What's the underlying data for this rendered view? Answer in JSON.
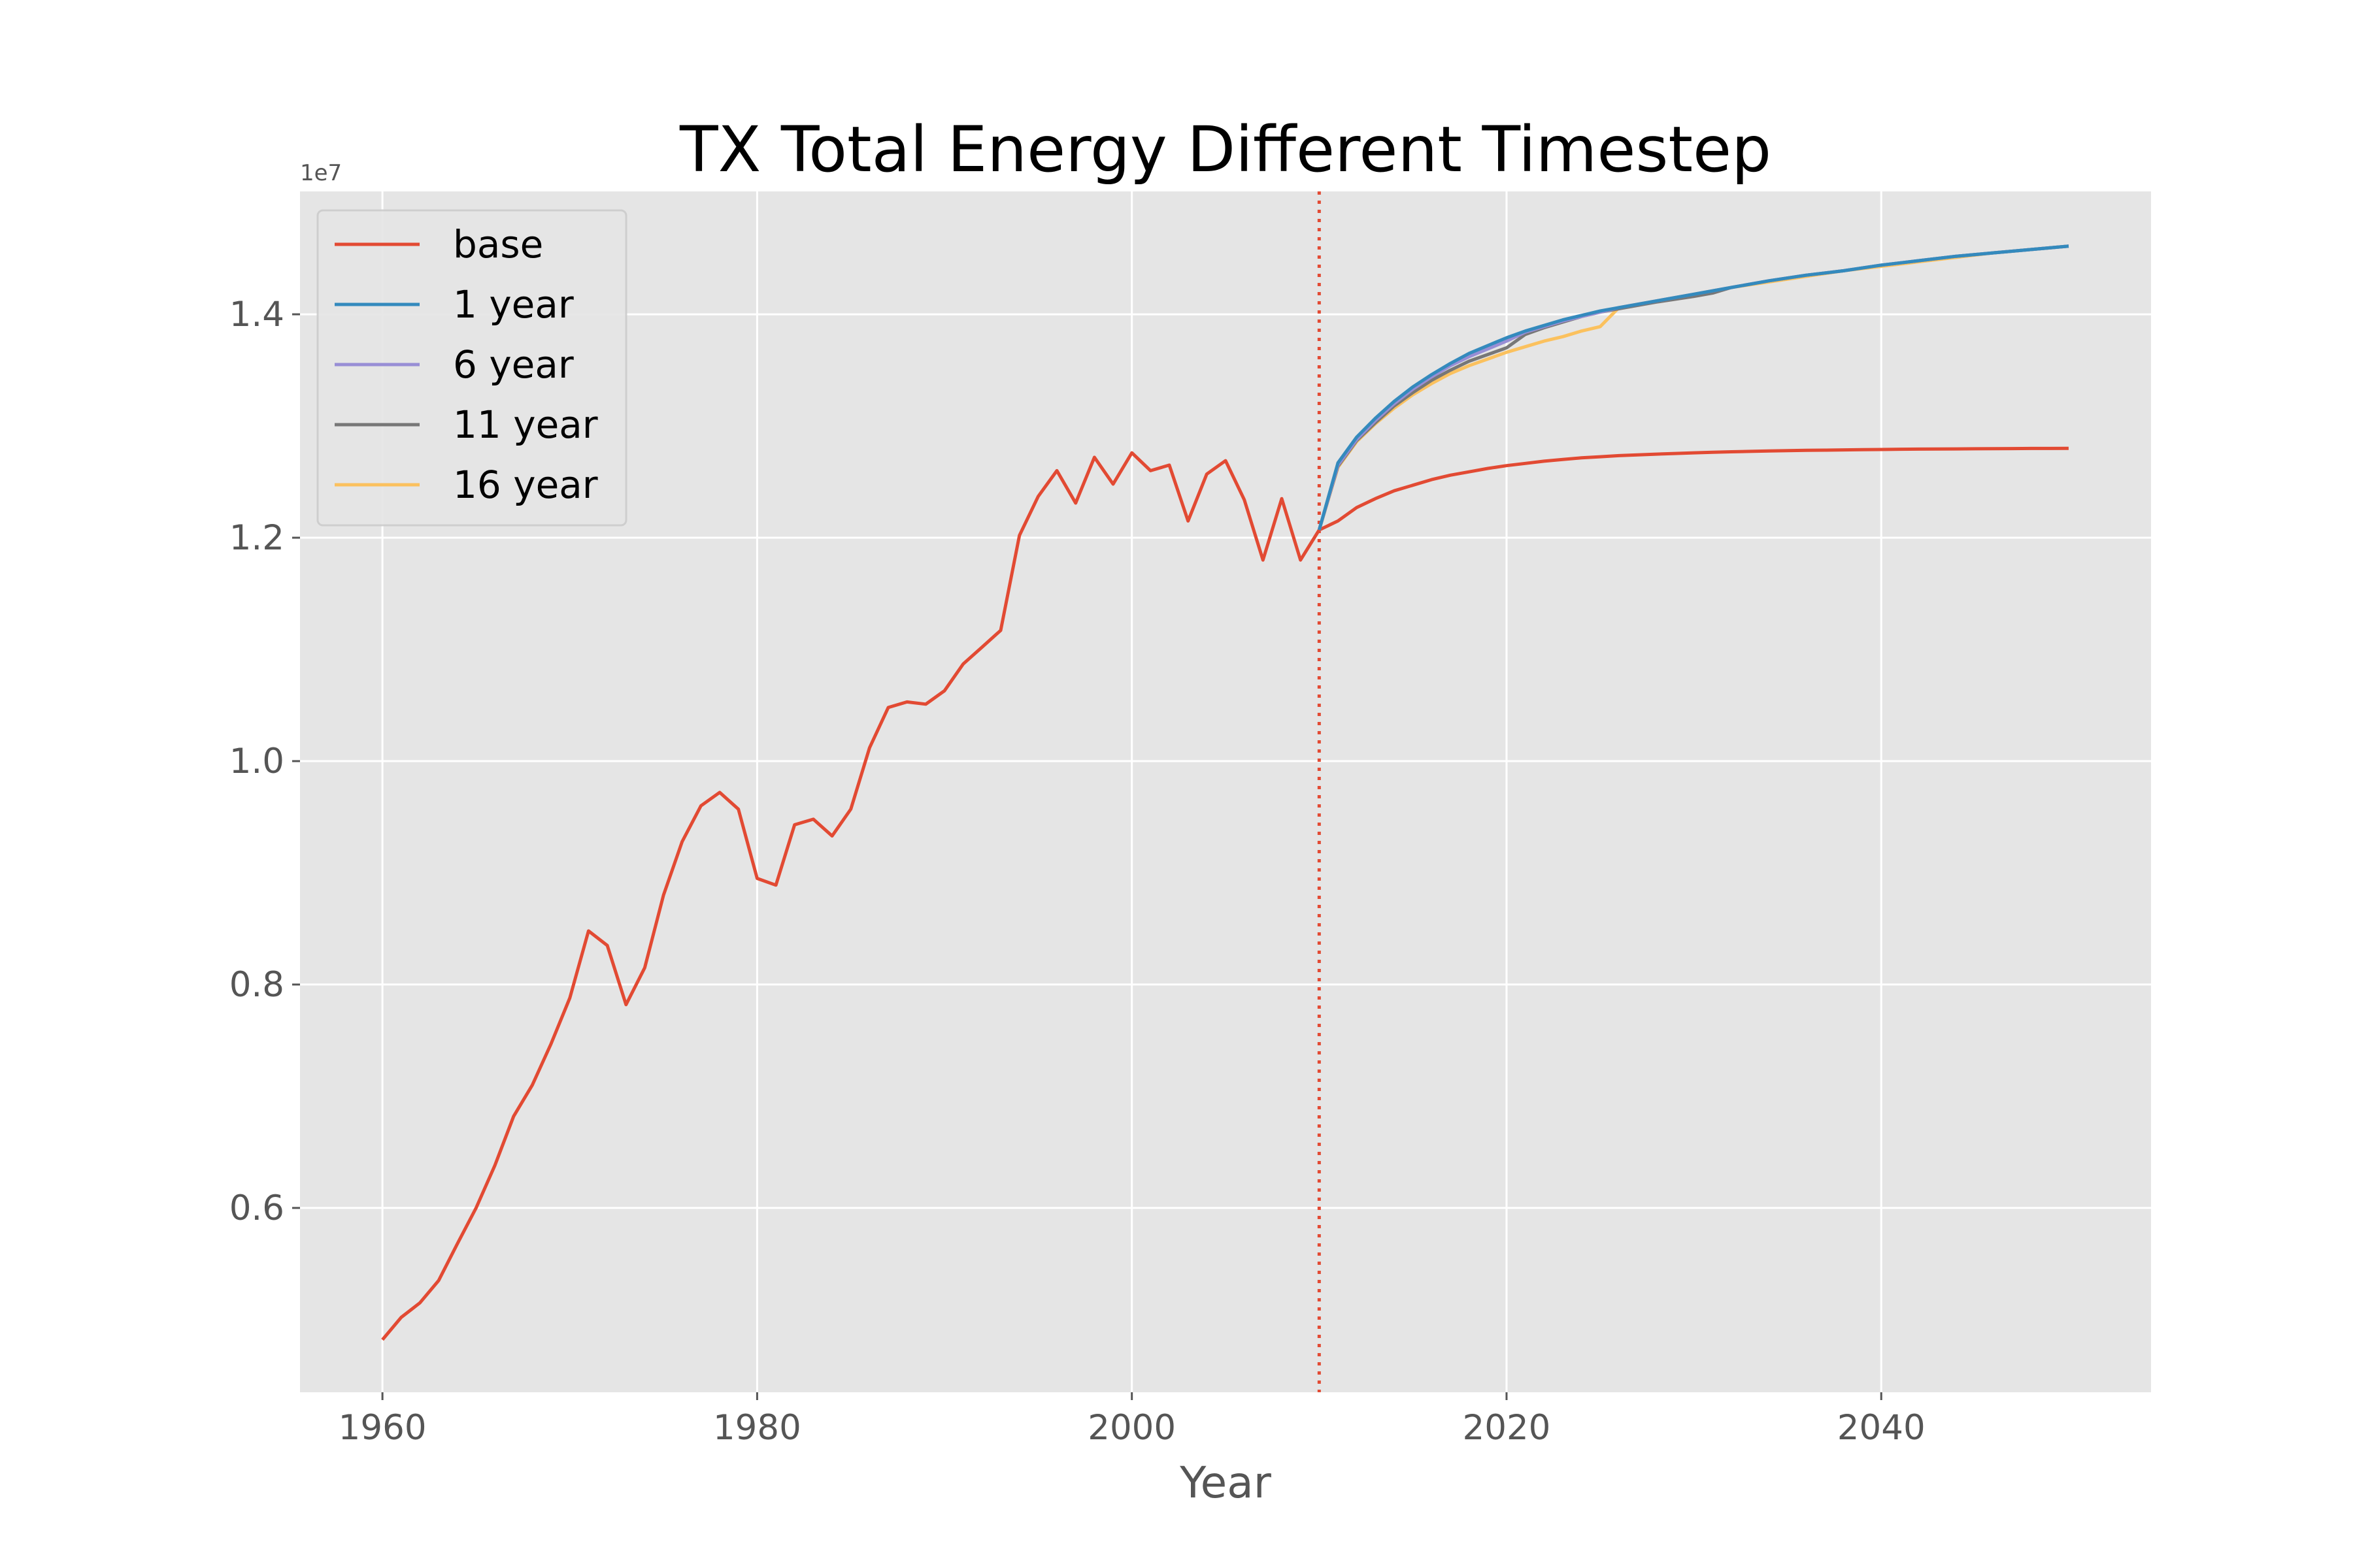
{
  "chart_data": {
    "type": "line",
    "title": "TX Total Energy Different Timestep",
    "xlabel": "Year",
    "ylabel": "",
    "y_offset_label": "1e7",
    "xlim": [
      1955.6,
      2054.4
    ],
    "ylim": [
      4.35,
      15.1
    ],
    "x_ticks": [
      1960,
      1980,
      2000,
      2020,
      2040
    ],
    "x_tick_labels": [
      "1960",
      "1980",
      "2000",
      "2020",
      "2040"
    ],
    "y_ticks": [
      6,
      8,
      10,
      12,
      14
    ],
    "y_tick_labels": [
      "0.6",
      "0.8",
      "1.0",
      "1.2",
      "1.4"
    ],
    "vline": {
      "x": 2010,
      "color": "#E24A33",
      "style": "dotted"
    },
    "grid": true,
    "background": "#E5E5E5",
    "legend_position": "top-left",
    "series": [
      {
        "name": "base",
        "color": "#E24A33",
        "x": [
          1960,
          1961,
          1962,
          1963,
          1964,
          1965,
          1966,
          1967,
          1968,
          1969,
          1970,
          1971,
          1972,
          1973,
          1974,
          1975,
          1976,
          1977,
          1978,
          1979,
          1980,
          1981,
          1982,
          1983,
          1984,
          1985,
          1986,
          1987,
          1988,
          1989,
          1990,
          1991,
          1992,
          1993,
          1994,
          1995,
          1996,
          1997,
          1998,
          1999,
          2000,
          2001,
          2002,
          2003,
          2004,
          2005,
          2006,
          2007,
          2008,
          2009,
          2010,
          2011,
          2012,
          2013,
          2014,
          2015,
          2016,
          2017,
          2018,
          2019,
          2020,
          2021,
          2022,
          2023,
          2024,
          2025,
          2026,
          2027,
          2028,
          2029,
          2030,
          2031,
          2032,
          2033,
          2034,
          2035,
          2036,
          2037,
          2038,
          2039,
          2040,
          2041,
          2042,
          2043,
          2044,
          2045,
          2046,
          2047,
          2048,
          2049,
          2050
        ],
        "y": [
          4.82,
          5.02,
          5.15,
          5.35,
          5.68,
          6.0,
          6.38,
          6.82,
          7.1,
          7.47,
          7.88,
          8.48,
          8.35,
          7.82,
          8.15,
          8.8,
          9.28,
          9.6,
          9.72,
          9.57,
          8.95,
          8.89,
          9.43,
          9.48,
          9.33,
          9.57,
          10.12,
          10.48,
          10.53,
          10.51,
          10.63,
          10.87,
          11.02,
          11.17,
          12.02,
          12.37,
          12.6,
          12.31,
          12.72,
          12.48,
          12.76,
          12.6,
          12.65,
          12.15,
          12.57,
          12.69,
          12.34,
          11.8,
          12.35,
          11.8,
          12.07,
          12.15,
          12.27,
          12.35,
          12.42,
          12.47,
          12.52,
          12.56,
          12.59,
          12.62,
          12.645,
          12.665,
          12.685,
          12.7,
          12.715,
          12.725,
          12.735,
          12.742,
          12.748,
          12.754,
          12.76,
          12.765,
          12.769,
          12.773,
          12.776,
          12.779,
          12.782,
          12.784,
          12.786,
          12.788,
          12.79,
          12.792,
          12.793,
          12.794,
          12.795,
          12.796,
          12.797,
          12.798,
          12.799,
          12.799,
          12.8
        ]
      },
      {
        "name": "1 year",
        "color": "#348ABD",
        "x": [
          2010,
          2011,
          2012,
          2013,
          2014,
          2015,
          2016,
          2017,
          2018,
          2019,
          2020,
          2021,
          2022,
          2023,
          2024,
          2025,
          2026,
          2028,
          2030,
          2032,
          2034,
          2036,
          2038,
          2040,
          2042,
          2044,
          2046,
          2048,
          2050
        ],
        "y": [
          12.07,
          12.67,
          12.9,
          13.07,
          13.22,
          13.35,
          13.46,
          13.56,
          13.65,
          13.72,
          13.79,
          13.85,
          13.9,
          13.95,
          13.99,
          14.03,
          14.06,
          14.12,
          14.18,
          14.24,
          14.3,
          14.35,
          14.39,
          14.44,
          14.48,
          14.52,
          14.55,
          14.58,
          14.61
        ]
      },
      {
        "name": "6 year",
        "color": "#988ED5",
        "x": [
          2010,
          2011,
          2012,
          2013,
          2014,
          2015,
          2016,
          2017,
          2018,
          2019,
          2020,
          2021,
          2022,
          2023,
          2024,
          2025,
          2026,
          2028,
          2030,
          2032,
          2034,
          2036,
          2038,
          2040,
          2042,
          2044,
          2046,
          2048,
          2050
        ],
        "y": [
          12.07,
          12.65,
          12.88,
          13.05,
          13.2,
          13.33,
          13.44,
          13.54,
          13.62,
          13.69,
          13.76,
          13.84,
          13.89,
          13.94,
          13.98,
          14.02,
          14.06,
          14.12,
          14.18,
          14.24,
          14.3,
          14.35,
          14.39,
          14.44,
          14.48,
          14.52,
          14.55,
          14.58,
          14.61
        ]
      },
      {
        "name": "11 year",
        "color": "#777777",
        "x": [
          2010,
          2011,
          2012,
          2013,
          2014,
          2015,
          2016,
          2017,
          2018,
          2019,
          2020,
          2021,
          2022,
          2023,
          2024,
          2025,
          2026,
          2028,
          2030,
          2031,
          2032,
          2034,
          2036,
          2038,
          2040,
          2042,
          2044,
          2046,
          2048,
          2050
        ],
        "y": [
          12.07,
          12.64,
          12.87,
          13.03,
          13.18,
          13.3,
          13.41,
          13.5,
          13.58,
          13.64,
          13.7,
          13.82,
          13.88,
          13.93,
          13.98,
          14.02,
          14.05,
          14.11,
          14.16,
          14.19,
          14.24,
          14.3,
          14.35,
          14.39,
          14.44,
          14.48,
          14.52,
          14.55,
          14.58,
          14.61
        ]
      },
      {
        "name": "16 year",
        "color": "#FBC15E",
        "x": [
          2010,
          2011,
          2012,
          2013,
          2014,
          2015,
          2016,
          2017,
          2018,
          2019,
          2020,
          2021,
          2022,
          2023,
          2024,
          2025,
          2026,
          2028,
          2030,
          2032,
          2034,
          2036,
          2038,
          2040,
          2042,
          2044,
          2046,
          2048,
          2050
        ],
        "y": [
          12.07,
          12.63,
          12.86,
          13.02,
          13.16,
          13.28,
          13.38,
          13.47,
          13.54,
          13.6,
          13.66,
          13.71,
          13.76,
          13.8,
          13.85,
          13.89,
          14.06,
          14.12,
          14.18,
          14.24,
          14.29,
          14.34,
          14.39,
          14.43,
          14.47,
          14.51,
          14.55,
          14.58,
          14.61
        ]
      }
    ]
  }
}
